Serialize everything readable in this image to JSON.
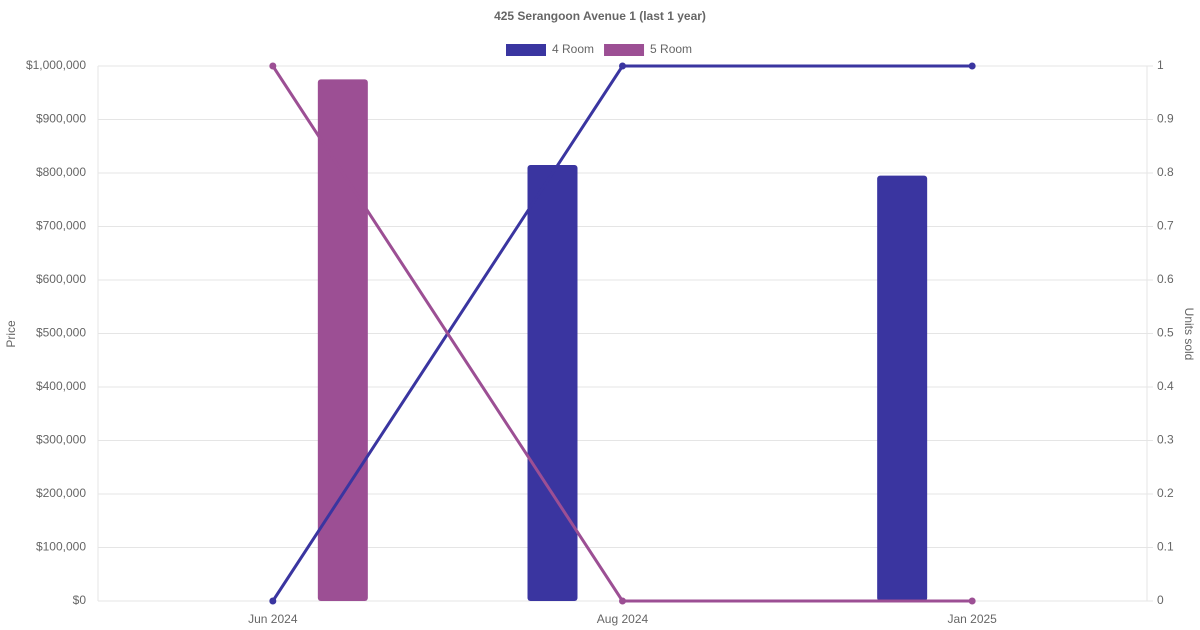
{
  "chart_data": {
    "type": "combo",
    "title": "425 Serangoon Avenue 1 (last 1 year)",
    "y_label": "Price",
    "y2_label": "Units sold",
    "categories": [
      "Jun 2024",
      "Aug 2024",
      "Jan 2025"
    ],
    "series": [
      {
        "name": "4 Room",
        "color": "#3a35a0",
        "values": [
          null,
          815000,
          795000
        ],
        "units": [
          0,
          1,
          1
        ]
      },
      {
        "name": "5 Room",
        "color": "#9c4f94",
        "values": [
          975000,
          null,
          null
        ],
        "units": [
          1,
          0,
          0
        ]
      }
    ],
    "ylim": [
      0,
      1000000
    ],
    "yticks": [
      {
        "value": 0,
        "label": "$0"
      },
      {
        "value": 100000,
        "label": "$100,000"
      },
      {
        "value": 200000,
        "label": "$200,000"
      },
      {
        "value": 300000,
        "label": "$300,000"
      },
      {
        "value": 400000,
        "label": "$400,000"
      },
      {
        "value": 500000,
        "label": "$500,000"
      },
      {
        "value": 600000,
        "label": "$600,000"
      },
      {
        "value": 700000,
        "label": "$700,000"
      },
      {
        "value": 800000,
        "label": "$800,000"
      },
      {
        "value": 900000,
        "label": "$900,000"
      },
      {
        "value": 1000000,
        "label": "$1,000,000"
      }
    ],
    "y2lim": [
      0,
      1
    ],
    "y2ticks": [
      0,
      0.1,
      0.2,
      0.3,
      0.4,
      0.5,
      0.6,
      0.7,
      0.8,
      0.9,
      1
    ],
    "grid": true
  }
}
